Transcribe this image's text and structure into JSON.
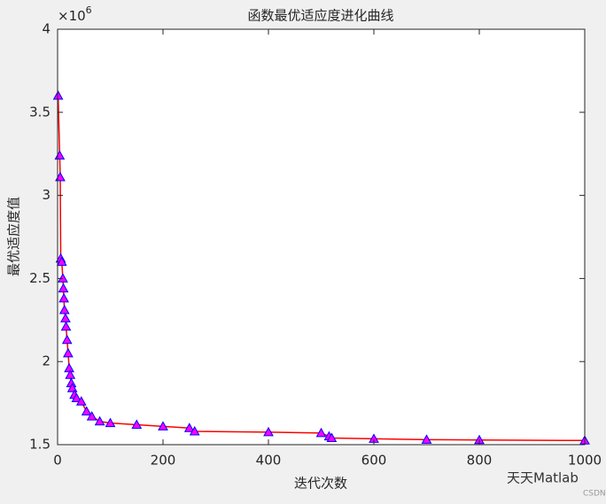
{
  "chart_data": {
    "type": "line",
    "title": "函数最优适应度进化曲线",
    "x_label": "迭代次数",
    "y_label": "最优适应度值",
    "y_exponent": {
      "base": "×10",
      "power": "6"
    },
    "x": [
      1,
      4,
      5,
      6,
      8,
      10,
      11,
      12,
      13,
      15,
      16,
      18,
      20,
      22,
      24,
      26,
      28,
      32,
      36,
      45,
      55,
      65,
      80,
      100,
      150,
      200,
      250,
      260,
      400,
      500,
      515,
      520,
      600,
      700,
      800,
      1000
    ],
    "values": [
      3.6,
      3.24,
      3.11,
      2.62,
      2.6,
      2.5,
      2.44,
      2.38,
      2.31,
      2.26,
      2.21,
      2.13,
      2.05,
      1.96,
      1.92,
      1.87,
      1.84,
      1.8,
      1.78,
      1.76,
      1.7,
      1.67,
      1.64,
      1.63,
      1.62,
      1.61,
      1.6,
      1.58,
      1.575,
      1.57,
      1.55,
      1.54,
      1.535,
      1.53,
      1.528,
      1.525
    ],
    "line_color": "#ff0000",
    "marker_face_color": "#ff00ff",
    "marker_edge_color": "#0000ff",
    "xlim": [
      0,
      1000
    ],
    "xticks": [
      0,
      200,
      400,
      600,
      800,
      1000
    ],
    "ylim": [
      1.5,
      4
    ],
    "yticks": [
      1.5,
      2,
      2.5,
      3,
      3.5,
      4
    ],
    "grid": false
  },
  "watermark": {
    "account": "天天Matlab",
    "site": "CSDN"
  }
}
